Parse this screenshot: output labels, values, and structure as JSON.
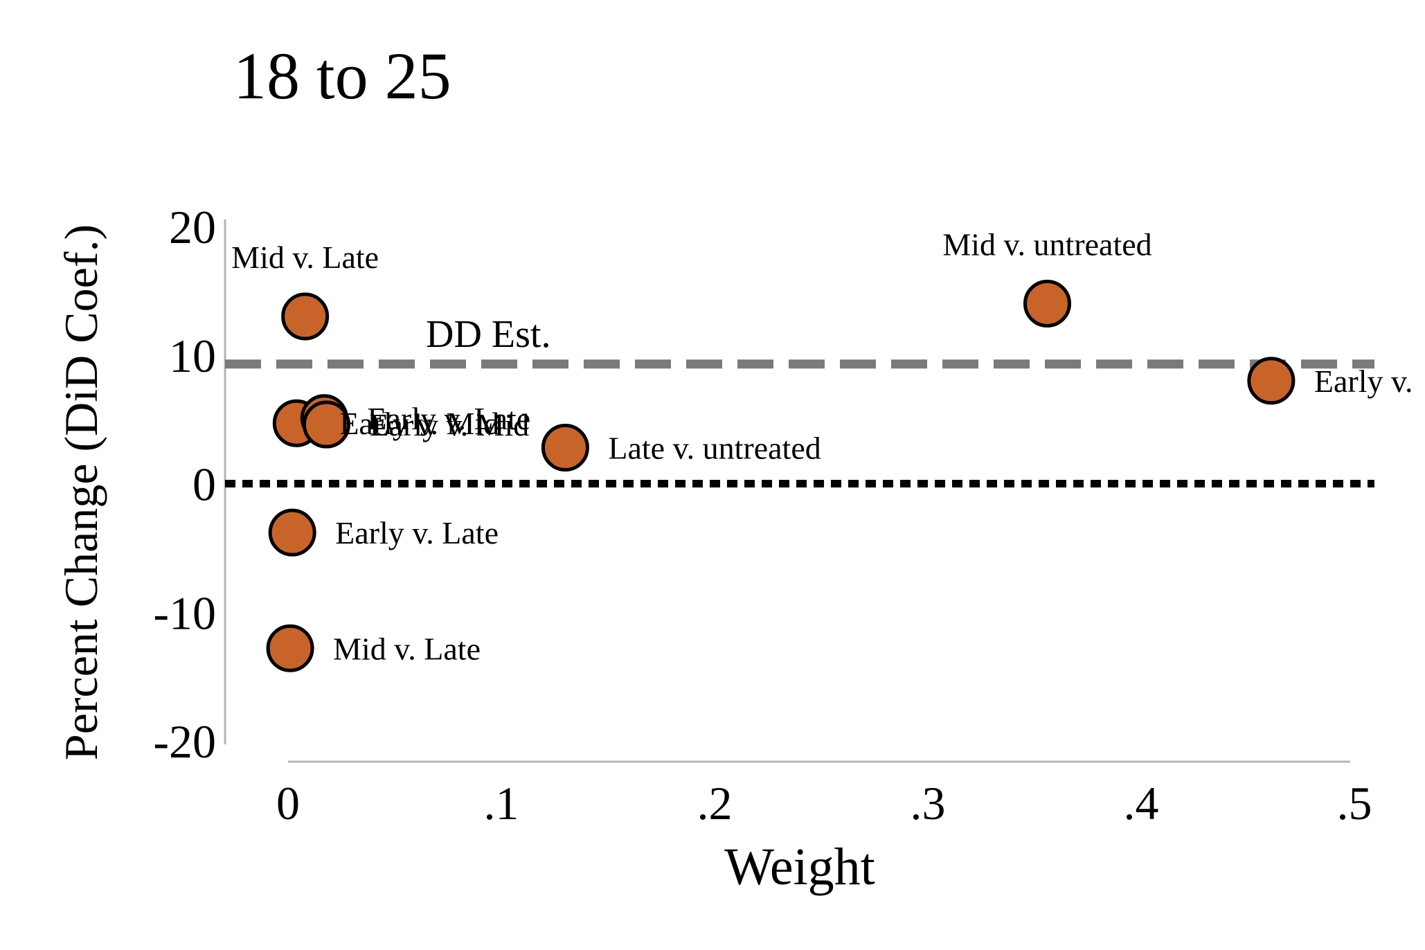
{
  "chart_data": {
    "type": "scatter",
    "title": "18 to 25",
    "xlabel": "Weight",
    "ylabel": "Percent Change (DiD Coef.)",
    "xlim": [
      0,
      0.5
    ],
    "ylim": [
      -20,
      20
    ],
    "x_ticks": [
      {
        "value": 0,
        "label": "0"
      },
      {
        "value": 0.1,
        "label": ".1"
      },
      {
        "value": 0.2,
        "label": ".2"
      },
      {
        "value": 0.3,
        "label": ".3"
      },
      {
        "value": 0.4,
        "label": ".4"
      },
      {
        "value": 0.5,
        "label": ".5"
      }
    ],
    "y_ticks": [
      {
        "value": -20,
        "label": "-20"
      },
      {
        "value": -10,
        "label": "-10"
      },
      {
        "value": 0,
        "label": "0"
      },
      {
        "value": 10,
        "label": "10"
      },
      {
        "value": 20,
        "label": "20"
      }
    ],
    "points": [
      {
        "x": 0.008,
        "y": 13.0,
        "label": "Mid v. Late",
        "label_side": "above"
      },
      {
        "x": 0.356,
        "y": 14.0,
        "label": "Mid v. untreated",
        "label_side": "above"
      },
      {
        "x": 0.461,
        "y": 8.0,
        "label": "Early v.",
        "label_side": "right"
      },
      {
        "x": 0.004,
        "y": 4.7,
        "label": "Early v. Mid",
        "label_side": "right"
      },
      {
        "x": 0.017,
        "y": 5.1,
        "label": "Early v. Late",
        "label_side": "right"
      },
      {
        "x": 0.018,
        "y": 4.6,
        "label": "Early v. Mid",
        "label_side": "right"
      },
      {
        "x": 0.13,
        "y": 2.8,
        "label": "Late v. untreated",
        "label_side": "right"
      },
      {
        "x": 0.002,
        "y": -3.8,
        "label": "Early v. Late",
        "label_side": "right"
      },
      {
        "x": 0.001,
        "y": -12.8,
        "label": "Mid v. Late",
        "label_side": "right"
      }
    ],
    "reference_lines": [
      {
        "y": 9.3,
        "style": "dashed",
        "color": "#7a7a7a",
        "label": "DD Est."
      },
      {
        "y": 0,
        "style": "dotted",
        "color": "#000000",
        "label": ""
      }
    ],
    "marker_color": "#c8642a",
    "marker_edge_color": "#000000",
    "grid": false,
    "legend": "none"
  }
}
